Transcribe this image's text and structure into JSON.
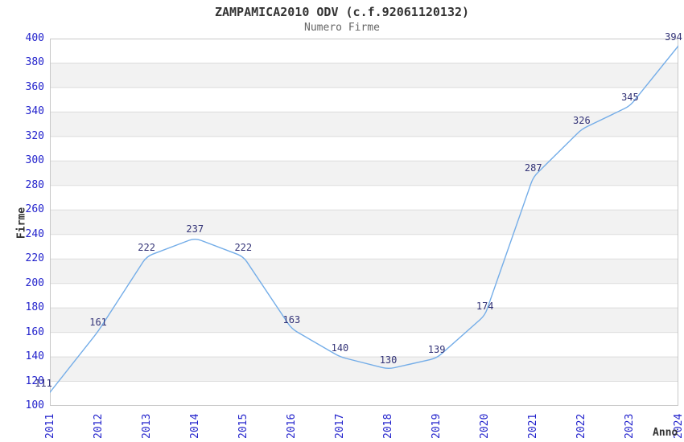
{
  "chart_data": {
    "type": "line",
    "title": "ZAMPAMICA2010 ODV (c.f.92061120132)",
    "subtitle": "Numero Firme",
    "xlabel": "Anno",
    "ylabel": "Firme",
    "categories": [
      "2011",
      "2012",
      "2013",
      "2014",
      "2015",
      "2016",
      "2017",
      "2018",
      "2019",
      "2020",
      "2021",
      "2022",
      "2023",
      "2024"
    ],
    "series": [
      {
        "name": "Numero Firme",
        "values": [
          111,
          161,
          222,
          237,
          222,
          163,
          140,
          130,
          139,
          174,
          287,
          326,
          345,
          394
        ]
      }
    ],
    "ylim": [
      100,
      400
    ],
    "ytick_step": 20,
    "grid": true,
    "bands": "alternating horizontal, white and light gray, one per 20-unit step, white at top",
    "legend_position": "none",
    "data_labels_shown": true,
    "markers": "none",
    "colors": {
      "line": "#74ade8",
      "tick_label": "#2222cc",
      "data_label": "#333377",
      "title": "#333333",
      "subtitle": "#666666",
      "axis_title": "#333333",
      "band_alt": "#f2f2f2",
      "gridline": "#dcdcdc",
      "plot_border": "#c8c8c8",
      "background": "#ffffff"
    }
  }
}
